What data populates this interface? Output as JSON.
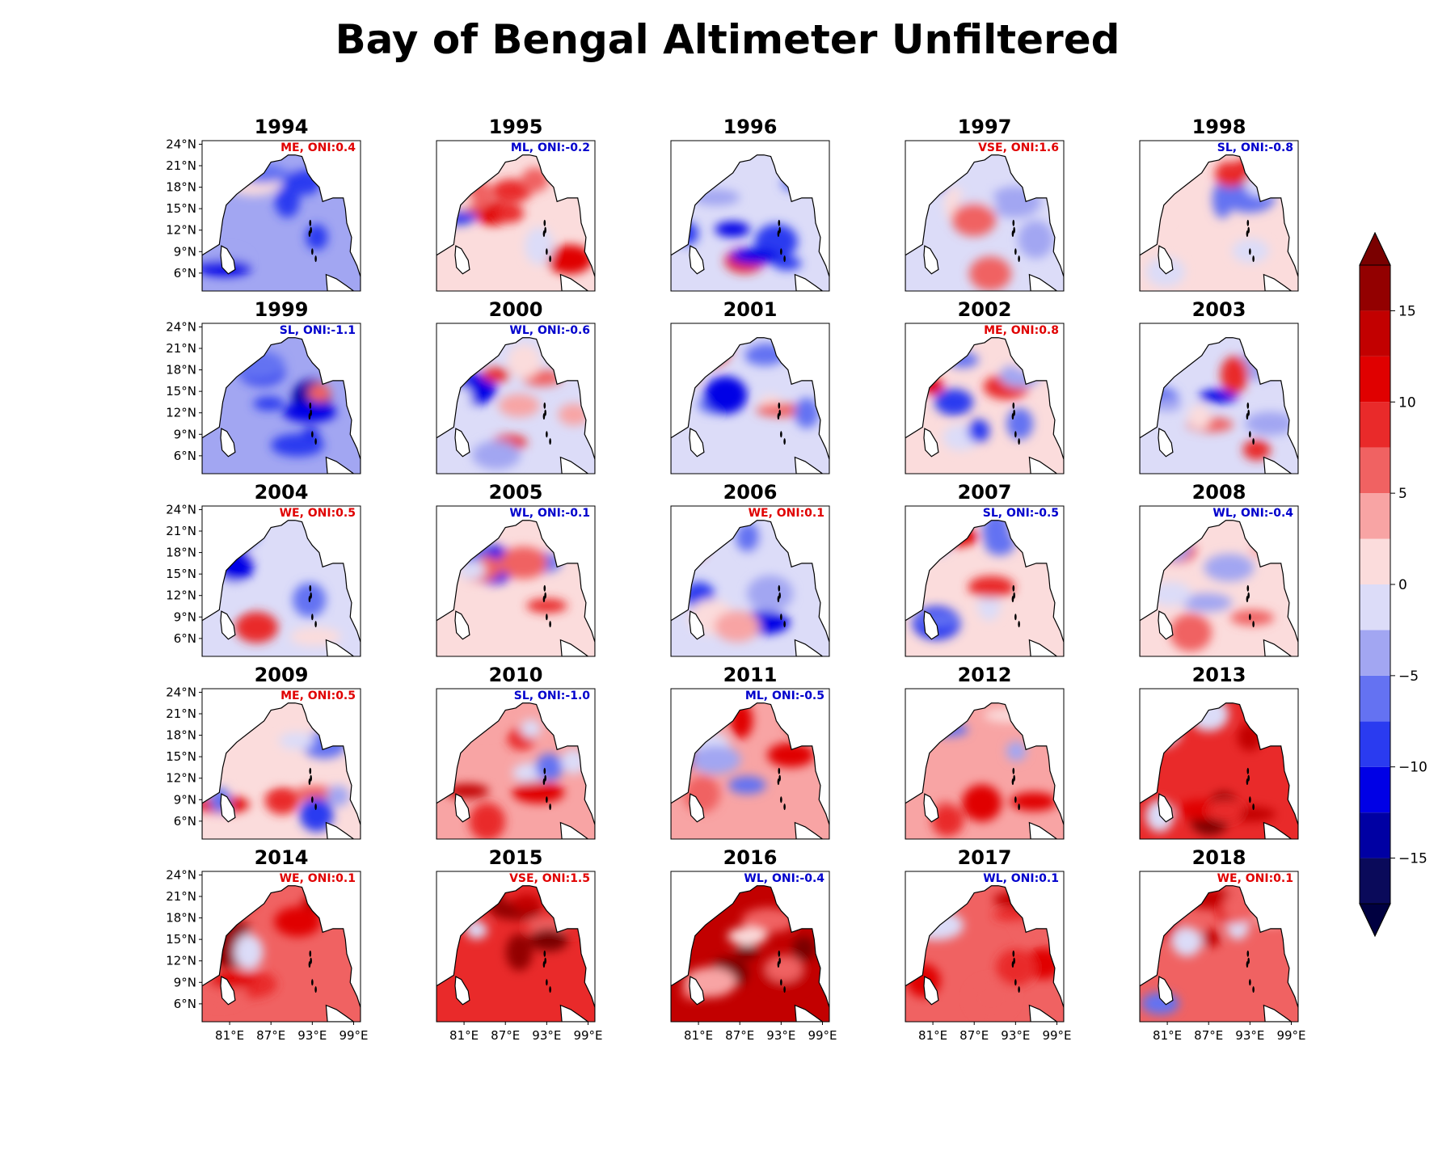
{
  "title": "Bay of Bengal Altimeter Unfiltered",
  "chart_data": {
    "type": "heatmap",
    "title": "Bay of Bengal Altimeter Unfiltered",
    "panel_grid": "5 rows x 5 columns",
    "y_tick_labels": [
      "24°N",
      "21°N",
      "18°N",
      "15°N",
      "12°N",
      "9°N",
      "6°N"
    ],
    "x_tick_labels": [
      "81°E",
      "87°E",
      "93°E",
      "99°E"
    ],
    "colorbar": {
      "ticks": [
        15,
        10,
        5,
        0,
        -5,
        -10,
        -15
      ],
      "tick_labels": [
        "15",
        "10",
        "5",
        "0",
        "−5",
        "−10",
        "−15"
      ],
      "levels": [
        -17.5,
        -15,
        -12.5,
        -10,
        -7.5,
        -5,
        -2.5,
        0,
        2.5,
        5,
        7.5,
        10,
        12.5,
        15,
        17.5
      ],
      "extend": "both",
      "colors": [
        "#0a0a5a",
        "#0000a3",
        "#0000e6",
        "#2a3bf0",
        "#6472f2",
        "#a2a6f2",
        "#dcdcf8",
        "#fbdcdc",
        "#f8a4a4",
        "#f06262",
        "#e92a2a",
        "#e00000",
        "#c20000",
        "#930000"
      ],
      "under_color": "#000040",
      "over_color": "#7a0000"
    },
    "panels": [
      {
        "year": "1994",
        "label": "ME, ONI:0.4",
        "label_color": "#e00000",
        "mean_anomaly": -3.5
      },
      {
        "year": "1995",
        "label": "ML, ONI:-0.2",
        "label_color": "#0000cc",
        "mean_anomaly": 0.5
      },
      {
        "year": "1996",
        "label": "",
        "label_color": "#e00000",
        "mean_anomaly": -1.5
      },
      {
        "year": "1997",
        "label": "VSE, ONI:1.6",
        "label_color": "#e00000",
        "mean_anomaly": -2.5
      },
      {
        "year": "1998",
        "label": "SL, ONI:-0.8",
        "label_color": "#0000cc",
        "mean_anomaly": 0.5
      },
      {
        "year": "1999",
        "label": "SL, ONI:-1.1",
        "label_color": "#0000cc",
        "mean_anomaly": -3.0
      },
      {
        "year": "2000",
        "label": "WL, ONI:-0.6",
        "label_color": "#0000cc",
        "mean_anomaly": -1.0
      },
      {
        "year": "2001",
        "label": "",
        "label_color": "#e00000",
        "mean_anomaly": -1.0
      },
      {
        "year": "2002",
        "label": "ME, ONI:0.8",
        "label_color": "#e00000",
        "mean_anomaly": 1.0
      },
      {
        "year": "2003",
        "label": "",
        "label_color": "#e00000",
        "mean_anomaly": -1.0
      },
      {
        "year": "2004",
        "label": "WE, ONI:0.5",
        "label_color": "#e00000",
        "mean_anomaly": -0.5
      },
      {
        "year": "2005",
        "label": "WL, ONI:-0.1",
        "label_color": "#0000cc",
        "mean_anomaly": 0.5
      },
      {
        "year": "2006",
        "label": "WE, ONI:0.1",
        "label_color": "#e00000",
        "mean_anomaly": -1.0
      },
      {
        "year": "2007",
        "label": "SL, ONI:-0.5",
        "label_color": "#0000cc",
        "mean_anomaly": 0.0
      },
      {
        "year": "2008",
        "label": "WL, ONI:-0.4",
        "label_color": "#0000cc",
        "mean_anomaly": 0.5
      },
      {
        "year": "2009",
        "label": "ME, ONI:0.5",
        "label_color": "#e00000",
        "mean_anomaly": 1.0
      },
      {
        "year": "2010",
        "label": "SL, ONI:-1.0",
        "label_color": "#0000cc",
        "mean_anomaly": 4.0
      },
      {
        "year": "2011",
        "label": "ML, ONI:-0.5",
        "label_color": "#0000cc",
        "mean_anomaly": 2.5
      },
      {
        "year": "2012",
        "label": "",
        "label_color": "#e00000",
        "mean_anomaly": 4.0
      },
      {
        "year": "2013",
        "label": "",
        "label_color": "#e00000",
        "mean_anomaly": 8.0
      },
      {
        "year": "2014",
        "label": "WE, ONI:0.1",
        "label_color": "#e00000",
        "mean_anomaly": 6.0
      },
      {
        "year": "2015",
        "label": "VSE, ONI:1.5",
        "label_color": "#e00000",
        "mean_anomaly": 8.0
      },
      {
        "year": "2016",
        "label": "WL, ONI:-0.4",
        "label_color": "#0000cc",
        "mean_anomaly": 13.0
      },
      {
        "year": "2017",
        "label": "WL, ONI:0.1",
        "label_color": "#0000cc",
        "mean_anomaly": 6.0
      },
      {
        "year": "2018",
        "label": "WE, ONI:0.1",
        "label_color": "#e00000",
        "mean_anomaly": 5.0
      }
    ]
  }
}
